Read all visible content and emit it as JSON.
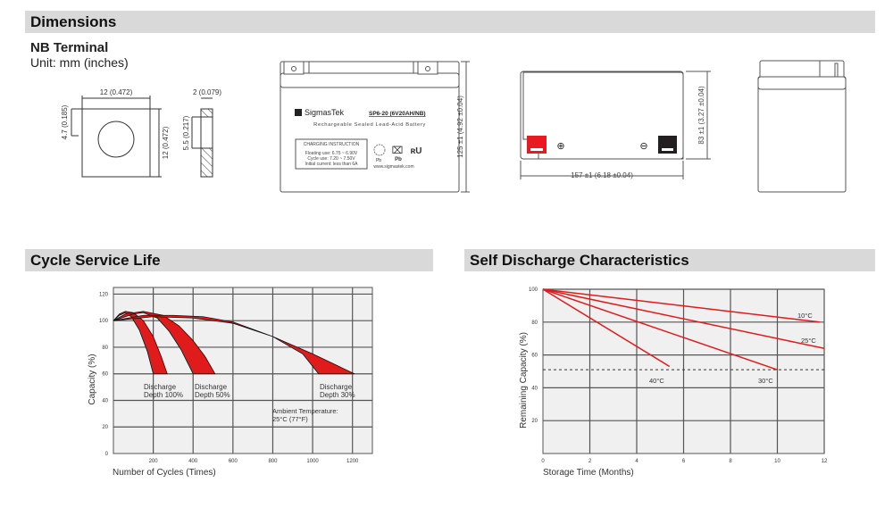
{
  "sections": {
    "dimensions": "Dimensions",
    "cycle_life": "Cycle Service Life",
    "self_discharge": "Self Discharge Characteristics"
  },
  "terminal": {
    "title": "NB Terminal",
    "unit": "Unit: mm (inches)",
    "width": "12 (0.472)",
    "height": "12 (0.472)",
    "hole_offset": "4.7 (0.185)",
    "thickness": "2 (0.079)",
    "slot": "5.5 (0.217)"
  },
  "battery": {
    "brand": "SigmasTek",
    "model": "SP6-20 (6V20AH/NB)",
    "subtitle": "Rechargeable Sealed Lead-Acid Battery",
    "charging_title": "CHARGING INSTRUCTION",
    "charging_lines": [
      "Floating use: 6.75 ~ 6.90V",
      "Cycle use: 7.20 ~ 7.50V",
      "Initial current: less than 6A"
    ],
    "website": "www.sigmastek.com",
    "pb_label": "Pb",
    "height_dim": "125 ±1 (4.92 ±0.04)",
    "depth_dim": "83 ±1 (3.27 ±0.04)",
    "length_dim": "157 ±1 (6.18 ±0.04)",
    "positive_color": "#e8191f",
    "negative_color": "#231f20"
  },
  "chart_data": [
    {
      "type": "area",
      "title": "Cycle Service Life",
      "xlabel": "Number of Cycles (Times)",
      "ylabel": "Capacity (%)",
      "xlim": [
        0,
        1300
      ],
      "ylim": [
        0,
        125
      ],
      "xticks": [
        200,
        400,
        600,
        800,
        1000,
        1200
      ],
      "yticks": [
        0,
        20,
        40,
        60,
        80,
        100,
        120
      ],
      "grid": true,
      "color": "#e01b1b",
      "series": [
        {
          "name": "Discharge Depth 100%",
          "label": [
            "Discharge",
            "Depth 100%"
          ],
          "upper": [
            [
              0,
              100
            ],
            [
              30,
              105
            ],
            [
              60,
              107
            ],
            [
              100,
              106
            ],
            [
              150,
              100
            ],
            [
              200,
              88
            ],
            [
              240,
              73
            ],
            [
              270,
              60
            ]
          ],
          "lower": [
            [
              0,
              100
            ],
            [
              30,
              104
            ],
            [
              60,
              106
            ],
            [
              90,
              103
            ],
            [
              130,
              93
            ],
            [
              170,
              77
            ],
            [
              200,
              60
            ]
          ]
        },
        {
          "name": "Discharge Depth 50%",
          "label": [
            "Discharge",
            "Depth 50%"
          ],
          "upper": [
            [
              0,
              100
            ],
            [
              60,
              105
            ],
            [
              150,
              107
            ],
            [
              250,
              104
            ],
            [
              330,
              96
            ],
            [
              400,
              85
            ],
            [
              460,
              73
            ],
            [
              510,
              60
            ]
          ],
          "lower": [
            [
              0,
              100
            ],
            [
              100,
              105
            ],
            [
              150,
              106
            ],
            [
              220,
              102
            ],
            [
              280,
              92
            ],
            [
              340,
              78
            ],
            [
              400,
              60
            ]
          ]
        },
        {
          "name": "Discharge Depth 30%",
          "label": [
            "Discharge",
            "Depth 30%"
          ],
          "upper": [
            [
              0,
              100
            ],
            [
              150,
              104
            ],
            [
              300,
              104
            ],
            [
              450,
              103
            ],
            [
              600,
              99
            ],
            [
              800,
              88
            ],
            [
              1000,
              75
            ],
            [
              1210,
              60
            ]
          ],
          "lower": [
            [
              0,
              100
            ],
            [
              200,
              103
            ],
            [
              400,
              102
            ],
            [
              600,
              98
            ],
            [
              800,
              88
            ],
            [
              950,
              75
            ],
            [
              1030,
              60
            ]
          ]
        }
      ],
      "annotation": [
        "Ambient Temperature:",
        "25°C (77°F)"
      ]
    },
    {
      "type": "line",
      "title": "Self Discharge Characteristics",
      "xlabel": "Storage Time (Months)",
      "ylabel": "Remaining Capacity (%)",
      "xlim": [
        0,
        12
      ],
      "ylim": [
        0,
        100
      ],
      "xticks": [
        0,
        2,
        4,
        6,
        8,
        10,
        12
      ],
      "yticks": [
        20,
        40,
        60,
        80,
        100
      ],
      "grid": true,
      "color": "#e01b1b",
      "reference_line": 51,
      "series": [
        {
          "name": "10°C",
          "points": [
            [
              0,
              100
            ],
            [
              11.8,
              80
            ]
          ]
        },
        {
          "name": "25°C",
          "points": [
            [
              0,
              100
            ],
            [
              12,
              64
            ]
          ]
        },
        {
          "name": "30°C",
          "points": [
            [
              0,
              100
            ],
            [
              10,
              51
            ]
          ]
        },
        {
          "name": "40°C",
          "points": [
            [
              0,
              100
            ],
            [
              5.4,
              53
            ]
          ]
        }
      ]
    }
  ]
}
